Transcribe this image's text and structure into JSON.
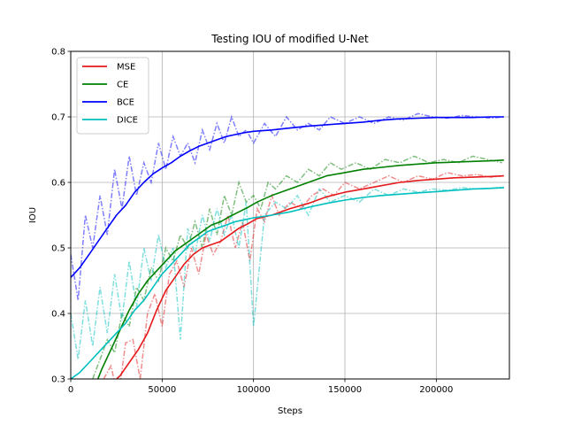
{
  "chart_data": {
    "type": "line",
    "title": "Testing IOU of modified U-Net",
    "xlabel": "Steps",
    "ylabel": "IOU",
    "xlim": [
      0,
      240000
    ],
    "ylim": [
      0.3,
      0.8
    ],
    "xticks": [
      0,
      50000,
      100000,
      150000,
      200000
    ],
    "xtick_labels": [
      "0",
      "50000",
      "100000",
      "150000",
      "200000"
    ],
    "yticks": [
      0.3,
      0.4,
      0.5,
      0.6,
      0.7,
      0.8
    ],
    "ytick_labels": [
      "0.3",
      "0.4",
      "0.5",
      "0.6",
      "0.7",
      "0.8"
    ],
    "grid": true,
    "legend_position": "top-left",
    "series": [
      {
        "name": "MSE",
        "color": "#e41a1c",
        "smoothed": {
          "x": [
            0,
            17000,
            22000,
            27000,
            32000,
            37000,
            42000,
            47000,
            52000,
            57000,
            62000,
            67000,
            72000,
            77000,
            82000,
            87000,
            92000,
            97000,
            102000,
            110000,
            120000,
            130000,
            140000,
            150000,
            160000,
            170000,
            180000,
            190000,
            200000,
            210000,
            220000,
            230000,
            237000
          ],
          "y": [
            0.26,
            0.28,
            0.292,
            0.305,
            0.325,
            0.345,
            0.37,
            0.405,
            0.435,
            0.455,
            0.475,
            0.49,
            0.5,
            0.505,
            0.51,
            0.52,
            0.53,
            0.537,
            0.545,
            0.55,
            0.56,
            0.568,
            0.578,
            0.585,
            0.59,
            0.595,
            0.6,
            0.603,
            0.605,
            0.607,
            0.608,
            0.609,
            0.61
          ]
        },
        "raw": {
          "x": [
            18000,
            22000,
            26000,
            30000,
            34000,
            38000,
            42000,
            46000,
            50000,
            54000,
            58000,
            62000,
            66000,
            70000,
            74000,
            78000,
            82000,
            86000,
            90000,
            94000,
            98000,
            102000,
            106000,
            110000,
            114000,
            120000,
            126000,
            132000,
            138000,
            144000,
            150000,
            158000,
            166000,
            174000,
            182000,
            190000,
            198000,
            206000,
            214000,
            222000,
            230000,
            237000
          ],
          "y": [
            0.3,
            0.32,
            0.27,
            0.355,
            0.36,
            0.3,
            0.4,
            0.43,
            0.38,
            0.46,
            0.48,
            0.44,
            0.5,
            0.46,
            0.52,
            0.49,
            0.51,
            0.55,
            0.5,
            0.54,
            0.48,
            0.56,
            0.54,
            0.58,
            0.55,
            0.57,
            0.56,
            0.58,
            0.59,
            0.58,
            0.6,
            0.59,
            0.6,
            0.61,
            0.6,
            0.61,
            0.605,
            0.615,
            0.61,
            0.612,
            0.608,
            0.61
          ]
        }
      },
      {
        "name": "CE",
        "color": "#008000",
        "smoothed": {
          "x": [
            12000,
            17000,
            22000,
            27000,
            32000,
            37000,
            42000,
            47000,
            52000,
            57000,
            62000,
            67000,
            72000,
            77000,
            82000,
            87000,
            92000,
            97000,
            102000,
            110000,
            120000,
            130000,
            140000,
            150000,
            160000,
            170000,
            180000,
            190000,
            200000,
            210000,
            220000,
            230000,
            237000
          ],
          "y": [
            0.28,
            0.315,
            0.345,
            0.375,
            0.405,
            0.43,
            0.45,
            0.465,
            0.48,
            0.495,
            0.505,
            0.515,
            0.525,
            0.535,
            0.54,
            0.548,
            0.555,
            0.562,
            0.57,
            0.58,
            0.59,
            0.6,
            0.61,
            0.615,
            0.62,
            0.623,
            0.626,
            0.628,
            0.63,
            0.631,
            0.632,
            0.633,
            0.634
          ]
        },
        "raw": {
          "x": [
            12000,
            16000,
            20000,
            24000,
            28000,
            32000,
            36000,
            40000,
            44000,
            48000,
            52000,
            56000,
            60000,
            64000,
            68000,
            72000,
            76000,
            80000,
            84000,
            88000,
            92000,
            96000,
            100000,
            104000,
            108000,
            112000,
            118000,
            124000,
            130000,
            136000,
            142000,
            148000,
            156000,
            164000,
            172000,
            180000,
            188000,
            196000,
            204000,
            212000,
            220000,
            228000,
            236000
          ],
          "y": [
            0.3,
            0.33,
            0.36,
            0.34,
            0.4,
            0.38,
            0.44,
            0.42,
            0.47,
            0.45,
            0.5,
            0.48,
            0.52,
            0.5,
            0.54,
            0.5,
            0.56,
            0.52,
            0.58,
            0.55,
            0.6,
            0.57,
            0.58,
            0.56,
            0.6,
            0.59,
            0.61,
            0.6,
            0.62,
            0.61,
            0.63,
            0.62,
            0.63,
            0.62,
            0.635,
            0.63,
            0.64,
            0.63,
            0.635,
            0.63,
            0.64,
            0.635,
            0.63
          ]
        }
      },
      {
        "name": "BCE",
        "color": "#0000ff",
        "smoothed": {
          "x": [
            0,
            5000,
            10000,
            15000,
            20000,
            25000,
            30000,
            35000,
            40000,
            45000,
            50000,
            55000,
            60000,
            65000,
            70000,
            75000,
            80000,
            85000,
            90000,
            95000,
            100000,
            110000,
            120000,
            130000,
            140000,
            150000,
            160000,
            170000,
            180000,
            190000,
            200000,
            210000,
            220000,
            230000,
            237000
          ],
          "y": [
            0.455,
            0.47,
            0.49,
            0.51,
            0.53,
            0.55,
            0.565,
            0.585,
            0.6,
            0.613,
            0.622,
            0.63,
            0.64,
            0.648,
            0.655,
            0.66,
            0.665,
            0.67,
            0.673,
            0.676,
            0.678,
            0.68,
            0.683,
            0.686,
            0.688,
            0.69,
            0.692,
            0.695,
            0.697,
            0.698,
            0.699,
            0.699,
            0.699,
            0.7,
            0.7
          ]
        },
        "raw": {
          "x": [
            0,
            4000,
            8000,
            12000,
            16000,
            20000,
            24000,
            28000,
            32000,
            36000,
            40000,
            44000,
            48000,
            52000,
            56000,
            60000,
            64000,
            68000,
            72000,
            76000,
            80000,
            84000,
            88000,
            92000,
            96000,
            100000,
            106000,
            112000,
            118000,
            124000,
            130000,
            136000,
            142000,
            150000,
            158000,
            166000,
            174000,
            182000,
            190000,
            198000,
            206000,
            214000,
            222000,
            230000,
            237000
          ],
          "y": [
            0.49,
            0.42,
            0.55,
            0.5,
            0.58,
            0.52,
            0.62,
            0.56,
            0.64,
            0.58,
            0.63,
            0.6,
            0.66,
            0.62,
            0.67,
            0.64,
            0.66,
            0.63,
            0.68,
            0.65,
            0.69,
            0.66,
            0.7,
            0.67,
            0.68,
            0.66,
            0.69,
            0.67,
            0.7,
            0.68,
            0.69,
            0.68,
            0.7,
            0.69,
            0.7,
            0.69,
            0.7,
            0.695,
            0.705,
            0.7,
            0.698,
            0.702,
            0.7,
            0.698,
            0.7
          ]
        }
      },
      {
        "name": "DICE",
        "color": "#00bfbf",
        "smoothed": {
          "x": [
            0,
            5000,
            10000,
            15000,
            20000,
            25000,
            30000,
            35000,
            40000,
            45000,
            50000,
            55000,
            60000,
            65000,
            70000,
            75000,
            80000,
            85000,
            90000,
            95000,
            100000,
            110000,
            120000,
            130000,
            140000,
            150000,
            160000,
            170000,
            180000,
            190000,
            200000,
            210000,
            220000,
            230000,
            237000
          ],
          "y": [
            0.3,
            0.31,
            0.325,
            0.34,
            0.355,
            0.37,
            0.385,
            0.405,
            0.42,
            0.44,
            0.46,
            0.475,
            0.49,
            0.505,
            0.515,
            0.525,
            0.53,
            0.535,
            0.54,
            0.543,
            0.546,
            0.55,
            0.555,
            0.562,
            0.568,
            0.573,
            0.577,
            0.58,
            0.582,
            0.584,
            0.586,
            0.588,
            0.59,
            0.591,
            0.592
          ]
        },
        "raw": {
          "x": [
            0,
            4000,
            8000,
            12000,
            16000,
            20000,
            24000,
            28000,
            32000,
            36000,
            40000,
            44000,
            48000,
            52000,
            56000,
            60000,
            64000,
            68000,
            72000,
            76000,
            80000,
            84000,
            88000,
            92000,
            96000,
            100000,
            106000,
            112000,
            118000,
            124000,
            130000,
            136000,
            142000,
            150000,
            158000,
            166000,
            174000,
            182000,
            190000,
            198000,
            206000,
            214000,
            222000,
            230000,
            237000
          ],
          "y": [
            0.4,
            0.33,
            0.42,
            0.35,
            0.44,
            0.37,
            0.46,
            0.39,
            0.48,
            0.41,
            0.5,
            0.45,
            0.52,
            0.47,
            0.5,
            0.36,
            0.53,
            0.49,
            0.55,
            0.51,
            0.56,
            0.52,
            0.55,
            0.5,
            0.57,
            0.38,
            0.55,
            0.57,
            0.56,
            0.58,
            0.55,
            0.59,
            0.57,
            0.58,
            0.57,
            0.59,
            0.58,
            0.59,
            0.585,
            0.59,
            0.588,
            0.592,
            0.59,
            0.591,
            0.593
          ]
        }
      }
    ]
  }
}
